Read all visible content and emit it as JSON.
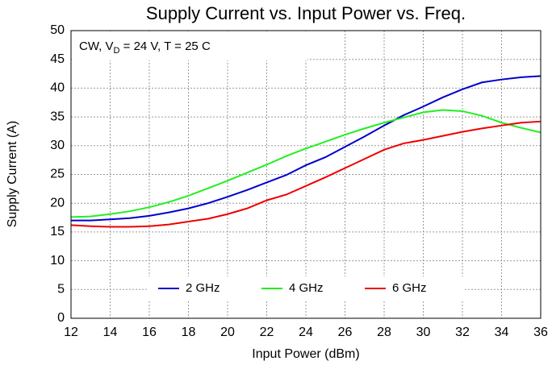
{
  "chart_data": {
    "type": "line",
    "title": "Supply Current vs. Input Power vs. Freq.",
    "annotation": [
      "CW, V",
      "D",
      " = 24 V, T = 25 C"
    ],
    "xlabel": "Input Power (dBm)",
    "ylabel": "Supply Current (A)",
    "x": [
      12,
      13,
      14,
      15,
      16,
      17,
      18,
      19,
      20,
      21,
      22,
      23,
      24,
      25,
      26,
      27,
      28,
      29,
      30,
      31,
      32,
      33,
      34,
      35,
      36
    ],
    "series": [
      {
        "name": "2 GHz",
        "color": "#0000cc",
        "values": [
          17.0,
          17.0,
          17.2,
          17.4,
          17.8,
          18.4,
          19.1,
          20.0,
          21.1,
          22.3,
          23.6,
          24.9,
          26.6,
          28.0,
          29.8,
          31.6,
          33.5,
          35.3,
          36.8,
          38.4,
          39.8,
          41.0,
          41.5,
          41.9,
          42.1
        ]
      },
      {
        "name": "4 GHz",
        "color": "#22ee22",
        "values": [
          17.6,
          17.7,
          18.1,
          18.6,
          19.3,
          20.2,
          21.3,
          22.6,
          23.9,
          25.3,
          26.7,
          28.2,
          29.5,
          30.7,
          31.9,
          33.0,
          34.0,
          34.9,
          35.8,
          36.2,
          36.0,
          35.2,
          34.0,
          33.1,
          32.3
        ]
      },
      {
        "name": "6 GHz",
        "color": "#ee0000",
        "values": [
          16.2,
          16.0,
          15.9,
          15.9,
          16.0,
          16.3,
          16.8,
          17.3,
          18.1,
          19.1,
          20.5,
          21.5,
          23.0,
          24.5,
          26.1,
          27.7,
          29.3,
          30.4,
          31.0,
          31.7,
          32.4,
          33.0,
          33.5,
          34.0,
          34.2
        ]
      }
    ],
    "xlim": [
      12,
      36
    ],
    "xticks": [
      12,
      14,
      16,
      18,
      20,
      22,
      24,
      26,
      28,
      30,
      32,
      34,
      36
    ],
    "ylim": [
      0,
      50
    ],
    "yticks": [
      0,
      5,
      10,
      15,
      20,
      25,
      30,
      35,
      40,
      45,
      50
    ],
    "grid": true,
    "legend": "lower center"
  }
}
